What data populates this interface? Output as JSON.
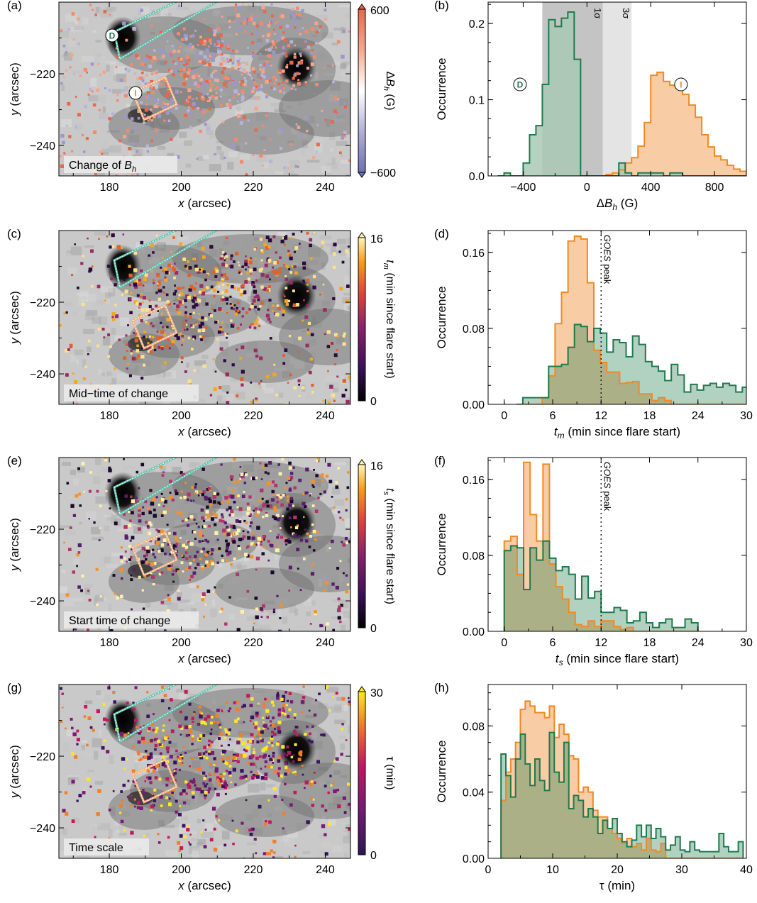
{
  "colors": {
    "increase": "#f08a24",
    "increase_fill": "#f8c9a0",
    "decrease": "#1f7a4e",
    "decrease_fill": "#a9c9b4",
    "overlap_fill": "#b8a45c",
    "sigma1_band": "#c4c4c4",
    "sigma3_band": "#e4e4e4"
  },
  "chart_data": [
    {
      "id": "a",
      "panel_label": "(a)",
      "type": "heatmap",
      "xlabel": "x (arcsec)",
      "ylabel": "y (arcsec)",
      "xlim": [
        166,
        247
      ],
      "ylim": [
        -248.5,
        -200
      ],
      "xticks": [
        "180",
        "200",
        "220",
        "240"
      ],
      "yticks": [
        "−220",
        "−240"
      ],
      "caption": "Change of B_h",
      "caption_main": "Change of ",
      "caption_var": "B",
      "caption_sub": "h",
      "colorbar": {
        "label_var": "ΔB",
        "label_sub": "h",
        "label_unit": " (G)",
        "min_label": "−600",
        "max_label": "600",
        "colormap": "diverging"
      },
      "region_labels": [
        "D",
        "I"
      ]
    },
    {
      "id": "b",
      "panel_label": "(b)",
      "type": "bar",
      "xlabel": "ΔB_h (G)",
      "xlabel_main": "ΔB",
      "xlabel_sub": "h",
      "xlabel_unit": " (G)",
      "ylabel": "Occurrence",
      "xlim": [
        -620,
        1000
      ],
      "ylim": [
        0,
        0.228
      ],
      "xticks": [
        -400,
        0,
        400,
        800
      ],
      "xtick_labels": [
        "−400",
        "0",
        "400",
        "800"
      ],
      "yticks": [
        0.0,
        0.1,
        0.2
      ],
      "ytick_labels": [
        "0.0",
        "0.1",
        "0.2"
      ],
      "bands": [
        {
          "label": "1σ",
          "x0": -280,
          "x1": 100
        },
        {
          "label": "3σ",
          "x0": 100,
          "x1": 280
        }
      ],
      "legend_markers": [
        {
          "label": "D",
          "x": -420,
          "y": 0.12
        },
        {
          "label": "I",
          "x": 590,
          "y": 0.12
        }
      ],
      "series": [
        {
          "name": "D",
          "x0": -560,
          "width": 40,
          "values": [
            0.0,
            0.004,
            0.0,
            0.0,
            0.017,
            0.054,
            0.066,
            0.12,
            0.205,
            0.196,
            0.207,
            0.215,
            0.153,
            0.0,
            0.0,
            0.0,
            0.0,
            0.0,
            0.0,
            0.017,
            0.004,
            0.0,
            0.004,
            0.004,
            0.004,
            0.004,
            0.0,
            0.004,
            0.004,
            0.0,
            0.0,
            0.0,
            0.0,
            0.0,
            0.0,
            0.0,
            0.0,
            0.0,
            0.0,
            0.0
          ]
        },
        {
          "name": "I",
          "x0": -560,
          "width": 40,
          "values": [
            0,
            0,
            0,
            0,
            0,
            0,
            0,
            0,
            0,
            0,
            0,
            0,
            0,
            0,
            0,
            0,
            0,
            0.002,
            0.004,
            0.008,
            0.017,
            0.024,
            0.039,
            0.07,
            0.132,
            0.136,
            0.124,
            0.119,
            0.115,
            0.107,
            0.093,
            0.077,
            0.054,
            0.038,
            0.026,
            0.021,
            0.014,
            0.009,
            0.006,
            0.003
          ]
        }
      ]
    },
    {
      "id": "c",
      "panel_label": "(c)",
      "type": "heatmap",
      "xlabel": "x (arcsec)",
      "ylabel": "y (arcsec)",
      "xlim": [
        166,
        247
      ],
      "ylim": [
        -248.5,
        -200
      ],
      "xticks": [
        "180",
        "200",
        "220",
        "240"
      ],
      "yticks": [
        "−220",
        "−240"
      ],
      "caption": "Mid−time of change",
      "colorbar": {
        "label_var": "t",
        "label_sub": "m",
        "label_unit": " (min since flare start)",
        "min_label": "0",
        "max_label": "16",
        "colormap": "inferno"
      }
    },
    {
      "id": "d",
      "panel_label": "(d)",
      "type": "bar",
      "xlabel": "t_m (min since flare start)",
      "xlabel_main": "t",
      "xlabel_sub": "m",
      "xlabel_unit": " (min since flare start)",
      "ylabel": "Occurrence",
      "xlim": [
        -2,
        30
      ],
      "ylim": [
        0,
        0.183
      ],
      "xticks": [
        0,
        6,
        12,
        18,
        24,
        30
      ],
      "xtick_labels": [
        "0",
        "6",
        "12",
        "18",
        "24",
        "30"
      ],
      "yticks": [
        0.0,
        0.08,
        0.16
      ],
      "ytick_labels": [
        "0.00",
        "0.08",
        "0.16"
      ],
      "vline": {
        "x": 12,
        "label_italic": "GOES",
        "label_rest": " peak"
      },
      "series": [
        {
          "name": "D",
          "x0": 1.5,
          "width": 0.8,
          "values": [
            0,
            0.007,
            0.007,
            0.007,
            0.007,
            0.04,
            0.04,
            0.042,
            0.06,
            0.084,
            0.082,
            0.066,
            0.08,
            0.075,
            0.055,
            0.068,
            0.065,
            0.05,
            0.072,
            0.063,
            0.045,
            0.04,
            0.035,
            0.025,
            0.042,
            0.031,
            0.013,
            0.021,
            0.015,
            0.02,
            0.022,
            0.018,
            0.022,
            0.02,
            0.013,
            0.018,
            0.008
          ]
        },
        {
          "name": "I",
          "x0": 1.5,
          "width": 0.8,
          "values": [
            0,
            0,
            0,
            0,
            0.007,
            0.03,
            0.085,
            0.118,
            0.172,
            0.177,
            0.174,
            0.128,
            0.057,
            0.044,
            0.034,
            0.034,
            0.022,
            0.023,
            0.024,
            0.011,
            0.011,
            0.004,
            0.007,
            0.004,
            0,
            0,
            0,
            0,
            0,
            0,
            0,
            0,
            0,
            0,
            0,
            0,
            0
          ]
        }
      ]
    },
    {
      "id": "e",
      "panel_label": "(e)",
      "type": "heatmap",
      "xlabel": "x (arcsec)",
      "ylabel": "y (arcsec)",
      "xlim": [
        166,
        247
      ],
      "ylim": [
        -248.5,
        -200
      ],
      "xticks": [
        "180",
        "200",
        "220",
        "240"
      ],
      "yticks": [
        "−220",
        "−240"
      ],
      "caption": "Start time of change",
      "colorbar": {
        "label_var": "t",
        "label_sub": "s",
        "label_unit": "  (min since flare start)",
        "min_label": "0",
        "max_label": "16",
        "colormap": "inferno"
      }
    },
    {
      "id": "f",
      "panel_label": "(f)",
      "type": "bar",
      "xlabel": "t_s (min since flare start)",
      "xlabel_main": "t",
      "xlabel_sub": "s",
      "xlabel_unit": "  (min since flare start)",
      "ylabel": "Occurrence",
      "xlim": [
        -2,
        30
      ],
      "ylim": [
        0,
        0.183
      ],
      "xticks": [
        0,
        6,
        12,
        18,
        24,
        30
      ],
      "xtick_labels": [
        "0",
        "6",
        "12",
        "18",
        "24",
        "30"
      ],
      "yticks": [
        0.0,
        0.08,
        0.16
      ],
      "ytick_labels": [
        "0.00",
        "0.08",
        "0.16"
      ],
      "vline": {
        "x": 12,
        "label_italic": "GOES",
        "label_rest": " peak"
      },
      "series": [
        {
          "name": "D",
          "x0": 0,
          "width": 0.8,
          "values": [
            0.085,
            0.09,
            0.088,
            0.044,
            0.088,
            0.075,
            0.095,
            0.077,
            0.064,
            0.068,
            0.06,
            0.034,
            0.058,
            0.035,
            0.042,
            0.02,
            0.02,
            0.025,
            0.022,
            0.009,
            0.011,
            0.02,
            0.009,
            0.004,
            0.009,
            0.013,
            0.004,
            0.004,
            0.013,
            0.009
          ]
        },
        {
          "name": "I",
          "x0": 0,
          "width": 0.8,
          "values": [
            0.095,
            0.1,
            0.06,
            0.178,
            0.123,
            0.095,
            0.176,
            0.071,
            0.047,
            0.034,
            0.02,
            0.007,
            0.005,
            0.011,
            0.005,
            0.011,
            0.011,
            0.005,
            0.002,
            0.004,
            0,
            0,
            0,
            0,
            0,
            0,
            0,
            0,
            0,
            0
          ]
        }
      ]
    },
    {
      "id": "g",
      "panel_label": "(g)",
      "type": "heatmap",
      "xlabel": "x (arcsec)",
      "ylabel": "y (arcsec)",
      "xlim": [
        166,
        247
      ],
      "ylim": [
        -248.5,
        -200
      ],
      "xticks": [
        "180",
        "200",
        "220",
        "240"
      ],
      "yticks": [
        "−220",
        "−240"
      ],
      "caption": "Time scale",
      "colorbar": {
        "label_var": "τ",
        "label_sub": "",
        "label_unit": " (min)",
        "min_label": "0",
        "max_label": "30",
        "colormap": "plasma"
      }
    },
    {
      "id": "h",
      "panel_label": "(h)",
      "type": "bar",
      "xlabel": "τ (min)",
      "xlabel_main": "τ",
      "xlabel_sub": "",
      "xlabel_unit": " (min)",
      "ylabel": "Occurrence",
      "xlim": [
        0,
        40
      ],
      "ylim": [
        0,
        0.105
      ],
      "xticks": [
        0,
        10,
        20,
        30,
        40
      ],
      "xtick_labels": [
        "0",
        "10",
        "20",
        "30",
        "40"
      ],
      "yticks": [
        0.0,
        0.04,
        0.08
      ],
      "ytick_labels": [
        "0.00",
        "0.04",
        "0.08"
      ],
      "series": [
        {
          "name": "D",
          "x0": 2,
          "width": 0.75,
          "values": [
            0.063,
            0.05,
            0.037,
            0.06,
            0.075,
            0.057,
            0.044,
            0.06,
            0.047,
            0.041,
            0.076,
            0.052,
            0.046,
            0.07,
            0.03,
            0.038,
            0.035,
            0.025,
            0.03,
            0.025,
            0.015,
            0.023,
            0.018,
            0.024,
            0.015,
            0.01,
            0.007,
            0.011,
            0.02,
            0.013,
            0.02,
            0.012,
            0.018,
            0.013,
            0.005,
            0.008,
            0.013,
            0.005,
            0.004,
            0.01,
            0.005,
            0.004,
            0.004,
            0.004,
            0.004,
            0.015,
            0.007,
            0.004,
            0.004,
            0.01
          ]
        },
        {
          "name": "I",
          "x0": 2,
          "width": 0.75,
          "values": [
            0.035,
            0.052,
            0.06,
            0.07,
            0.09,
            0.095,
            0.092,
            0.088,
            0.088,
            0.085,
            0.092,
            0.073,
            0.081,
            0.075,
            0.062,
            0.06,
            0.04,
            0.043,
            0.04,
            0.029,
            0.025,
            0.025,
            0.018,
            0.015,
            0.012,
            0.009,
            0.012,
            0.007,
            0.009,
            0.005,
            0.012,
            0.005,
            0.004,
            0.009,
            0,
            0,
            0,
            0,
            0,
            0,
            0,
            0,
            0,
            0,
            0,
            0,
            0,
            0,
            0,
            0
          ]
        }
      ]
    }
  ]
}
